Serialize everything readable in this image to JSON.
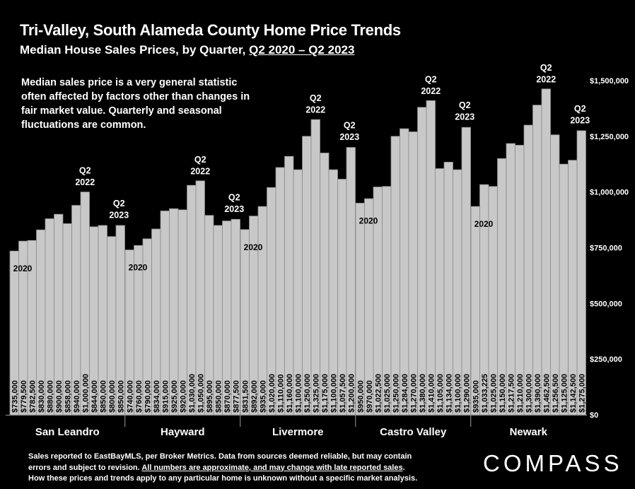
{
  "header": {
    "title": "Tri-Valley, South Alameda County Home Price Trends",
    "subtitle_prefix": "Median House Sales Prices, by Quarter, ",
    "subtitle_period": "Q2 2020 – Q2 2023"
  },
  "note": "Median sales price is a very general statistic often affected by factors other than changes in fair market value. Quarterly and seasonal fluctuations are common.",
  "footer": {
    "line1": "Sales reported to EastBayMLS, per Broker Metrics. Data from sources deemed reliable, but may contain",
    "line2_prefix": "errors and subject to revision. ",
    "line2_underlined": "All numbers are approximate, and may change with late reported sales",
    "line2_suffix": ".",
    "line3": "How these prices and trends apply to any particular home is unknown without a specific market analysis."
  },
  "brand": {
    "logo_text": "COMPASS"
  },
  "colors": {
    "background": "#000000",
    "bar": "#c8c8c8",
    "bar_edge": "#8a8a8a",
    "text": "#ffffff"
  },
  "chart_data": {
    "type": "bar",
    "ylim": [
      0,
      1500000
    ],
    "yticks": [
      0,
      250000,
      500000,
      750000,
      1000000,
      1250000,
      1500000
    ],
    "ytick_labels": [
      "$0",
      "$250,000",
      "$500,000",
      "$750,000",
      "$1,000,000",
      "$1,250,000",
      "$1,500,000"
    ],
    "groups": [
      {
        "name": "San Leandro",
        "start_label": "2020",
        "peak_label": "Q2\n2022",
        "peak_index": 8,
        "end_label": "Q2\n2023",
        "value_labels": [
          "$735,000",
          "$779,500",
          "$782,500",
          "$830,000",
          "$880,000",
          "$900,000",
          "$858,000",
          "$940,000",
          "$1,000,000",
          "$844,000",
          "$850,000",
          "$800,000",
          "$850,000"
        ],
        "values": [
          735000,
          779500,
          782500,
          830000,
          880000,
          900000,
          858000,
          940000,
          1000000,
          844000,
          850000,
          800000,
          850000
        ]
      },
      {
        "name": "Hayward",
        "start_label": "2020",
        "peak_label": "Q2\n2022",
        "peak_index": 8,
        "end_label": "Q2\n2023",
        "value_labels": [
          "$740,000",
          "$760,000",
          "$790,000",
          "$834,000",
          "$915,000",
          "$925,000",
          "$920,000",
          "$1,030,000",
          "$1,050,000",
          "$895,000",
          "$850,000",
          "$870,000",
          "$877,500"
        ],
        "values": [
          740000,
          760000,
          790000,
          834000,
          915000,
          925000,
          920000,
          1030000,
          1050000,
          895000,
          850000,
          870000,
          877500
        ]
      },
      {
        "name": "Livermore",
        "start_label": "2020",
        "peak_label": "Q2\n2022",
        "peak_index": 8,
        "end_label": "Q2\n2023",
        "value_labels": [
          "$831,500",
          "$892,000",
          "$935,000",
          "$1,020,000",
          "$1,110,000",
          "$1,160,000",
          "$1,100,000",
          "$1,250,000",
          "$1,325,000",
          "$1,175,000",
          "$1,100,000",
          "$1,057,500",
          "$1,200,000"
        ],
        "values": [
          831500,
          892000,
          935000,
          1020000,
          1110000,
          1160000,
          1100000,
          1250000,
          1325000,
          1175000,
          1100000,
          1057500,
          1200000
        ]
      },
      {
        "name": "Castro Valley",
        "start_label": "2020",
        "peak_label": "Q2\n2022",
        "peak_index": 8,
        "end_label": "Q2\n2023",
        "value_labels": [
          "$950,000",
          "$970,000",
          "$1,022,500",
          "$1,025,000",
          "$1,250,000",
          "$1,284,000",
          "$1,270,000",
          "$1,380,000",
          "$1,410,000",
          "$1,105,000",
          "$1,134,000",
          "$1,100,000",
          "$1,290,000"
        ],
        "values": [
          950000,
          970000,
          1022500,
          1025000,
          1250000,
          1284000,
          1270000,
          1380000,
          1410000,
          1105000,
          1134000,
          1100000,
          1290000
        ]
      },
      {
        "name": "Newark",
        "start_label": "2020",
        "peak_label": "Q2\n2022",
        "peak_index": 8,
        "end_label": "Q2\n2023",
        "value_labels": [
          "$935,000",
          "$1,033,225",
          "$1,025,000",
          "$1,150,000",
          "$1,217,500",
          "$1,210,000",
          "$1,300,000",
          "$1,390,000",
          "$1,462,500",
          "$1,256,500",
          "$1,125,000",
          "$1,142,500",
          "$1,275,000"
        ],
        "values": [
          935000,
          1033225,
          1025000,
          1150000,
          1217500,
          1210000,
          1300000,
          1390000,
          1462500,
          1256500,
          1125000,
          1142500,
          1275000
        ]
      }
    ]
  }
}
